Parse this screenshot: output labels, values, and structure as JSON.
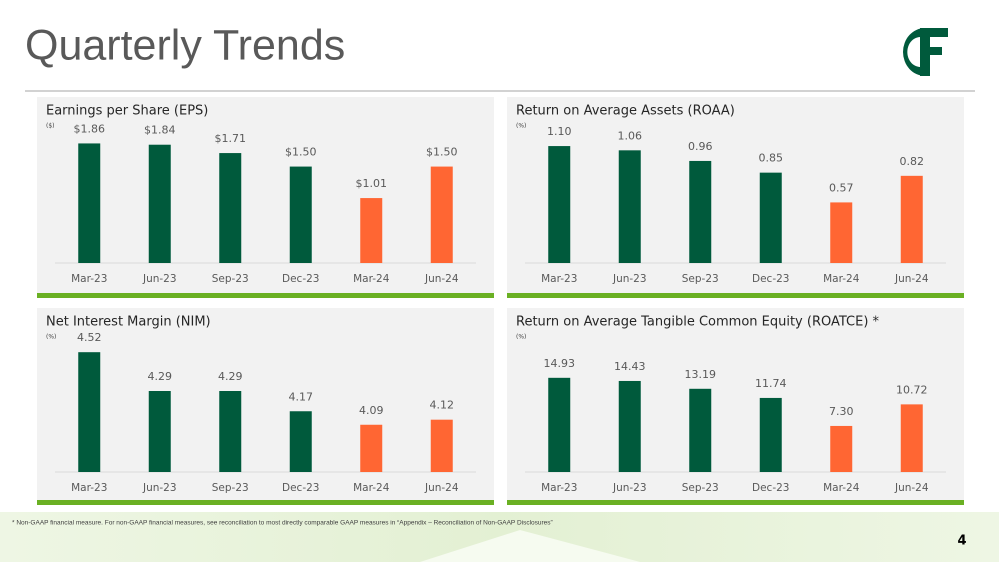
{
  "title": "Quarterly Trends",
  "footnote": "* Non-GAAP financial measure.  For non-GAAP financial measures, see reconciliation to most directly comparable GAAP measures in “Appendix – Reconciliation of Non-GAAP Disclosures”",
  "page_number": "4",
  "chart_data": [
    {
      "type": "bar",
      "title": "Earnings per Share (EPS)",
      "subtitle": "($)",
      "categories": [
        "Mar-23",
        "Jun-23",
        "Sep-23",
        "Dec-23",
        "Mar-24",
        "Jun-24"
      ],
      "values": [
        1.86,
        1.84,
        1.71,
        1.5,
        1.01,
        1.5
      ],
      "value_labels": [
        "$1.86",
        "$1.84",
        "$1.71",
        "$1.50",
        "$1.01",
        "$1.50"
      ],
      "colors": [
        "#005a3c",
        "#005a3c",
        "#005a3c",
        "#005a3c",
        "#ff6633",
        "#ff6633"
      ],
      "ylim": [
        0,
        2.1
      ]
    },
    {
      "type": "bar",
      "title": "Return on Average Assets (ROAA)",
      "subtitle": "(%)",
      "categories": [
        "Mar-23",
        "Jun-23",
        "Sep-23",
        "Dec-23",
        "Mar-24",
        "Jun-24"
      ],
      "values": [
        1.1,
        1.06,
        0.96,
        0.85,
        0.57,
        0.82
      ],
      "value_labels": [
        "1.10",
        "1.06",
        "0.96",
        "0.85",
        "0.57",
        "0.82"
      ],
      "colors": [
        "#005a3c",
        "#005a3c",
        "#005a3c",
        "#005a3c",
        "#ff6633",
        "#ff6633"
      ],
      "ylim": [
        0,
        1.27
      ]
    },
    {
      "type": "bar",
      "title": "Net Interest Margin (NIM)",
      "subtitle": "(%)",
      "categories": [
        "Mar-23",
        "Jun-23",
        "Sep-23",
        "Dec-23",
        "Mar-24",
        "Jun-24"
      ],
      "values": [
        4.52,
        4.29,
        4.29,
        4.17,
        4.09,
        4.12
      ],
      "value_labels": [
        "4.52",
        "4.29",
        "4.29",
        "4.17",
        "4.09",
        "4.12"
      ],
      "colors": [
        "#005a3c",
        "#005a3c",
        "#005a3c",
        "#005a3c",
        "#ff6633",
        "#ff6633"
      ],
      "ylim": [
        3.81,
        4.61
      ]
    },
    {
      "type": "bar",
      "title": "Return on Average Tangible Common Equity (ROATCE) *",
      "subtitle": "(%)",
      "categories": [
        "Mar-23",
        "Jun-23",
        "Sep-23",
        "Dec-23",
        "Mar-24",
        "Jun-24"
      ],
      "values": [
        14.93,
        14.43,
        13.19,
        11.74,
        7.3,
        10.72
      ],
      "value_labels": [
        "14.93",
        "14.43",
        "13.19",
        "11.74",
        "7.30",
        "10.72"
      ],
      "colors": [
        "#005a3c",
        "#005a3c",
        "#005a3c",
        "#005a3c",
        "#ff6633",
        "#ff6633"
      ],
      "ylim": [
        0,
        21.4
      ]
    }
  ]
}
